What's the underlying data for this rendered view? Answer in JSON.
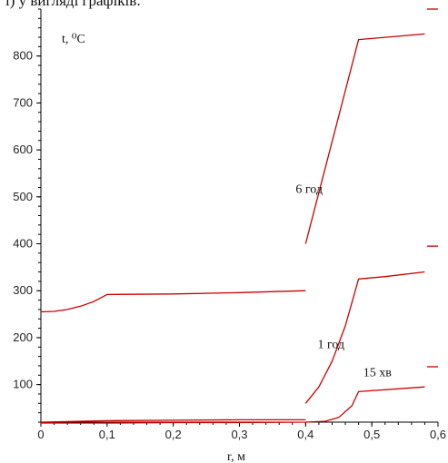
{
  "top_text": "і) у вигляді графіків:",
  "chart_data": {
    "type": "line",
    "title": "",
    "xlabel": "r, м",
    "ylabel": "t, ⁰C",
    "xlim": [
      0,
      0.6
    ],
    "ylim": [
      20,
      900
    ],
    "grid": false,
    "line_color": "#cc0000",
    "x_ticks": [
      0,
      0.1,
      0.2,
      0.3,
      0.4,
      0.5,
      0.6
    ],
    "x_tick_labels": [
      "0",
      "0,1",
      "0,2",
      "0,3",
      "0,4",
      "0,5",
      "0,6"
    ],
    "y_ticks": [
      100,
      200,
      300,
      400,
      500,
      600,
      700,
      800
    ],
    "y_tick_labels": [
      "100",
      "200",
      "300",
      "400",
      "500",
      "600",
      "700",
      "800"
    ],
    "series": [
      {
        "name": "6 год",
        "segments": [
          [
            [
              0,
              255
            ],
            [
              0.02,
              256
            ],
            [
              0.04,
              260
            ],
            [
              0.06,
              267
            ],
            [
              0.08,
              277
            ],
            [
              0.1,
              292
            ],
            [
              0.2,
              293
            ],
            [
              0.3,
              296
            ],
            [
              0.4,
              300
            ]
          ],
          [
            [
              0.4,
              400
            ],
            [
              0.48,
              835
            ],
            [
              0.58,
              847
            ]
          ]
        ]
      },
      {
        "name": "1 год",
        "segments": [
          [
            [
              0,
              20
            ],
            [
              0.1,
              23
            ],
            [
              0.2,
              24
            ],
            [
              0.3,
              25
            ],
            [
              0.4,
              25
            ]
          ],
          [
            [
              0.4,
              60
            ],
            [
              0.42,
              95
            ],
            [
              0.44,
              150
            ],
            [
              0.46,
              225
            ],
            [
              0.48,
              325
            ],
            [
              0.52,
              330
            ],
            [
              0.58,
              340
            ]
          ]
        ]
      },
      {
        "name": "15 хв",
        "segments": [
          [
            [
              0,
              18
            ],
            [
              0.1,
              18
            ],
            [
              0.2,
              19
            ],
            [
              0.3,
              19
            ],
            [
              0.4,
              20
            ],
            [
              0.43,
              22
            ],
            [
              0.45,
              30
            ],
            [
              0.47,
              55
            ],
            [
              0.48,
              85
            ],
            [
              0.58,
              95
            ]
          ]
        ]
      }
    ],
    "right_marks": [
      900,
      395,
      138
    ],
    "annotations": [
      {
        "text": "6 год",
        "x": 0.385,
        "y": 508
      },
      {
        "text": "1 год",
        "x": 0.418,
        "y": 178
      },
      {
        "text": "15 хв",
        "x": 0.487,
        "y": 118
      }
    ]
  }
}
